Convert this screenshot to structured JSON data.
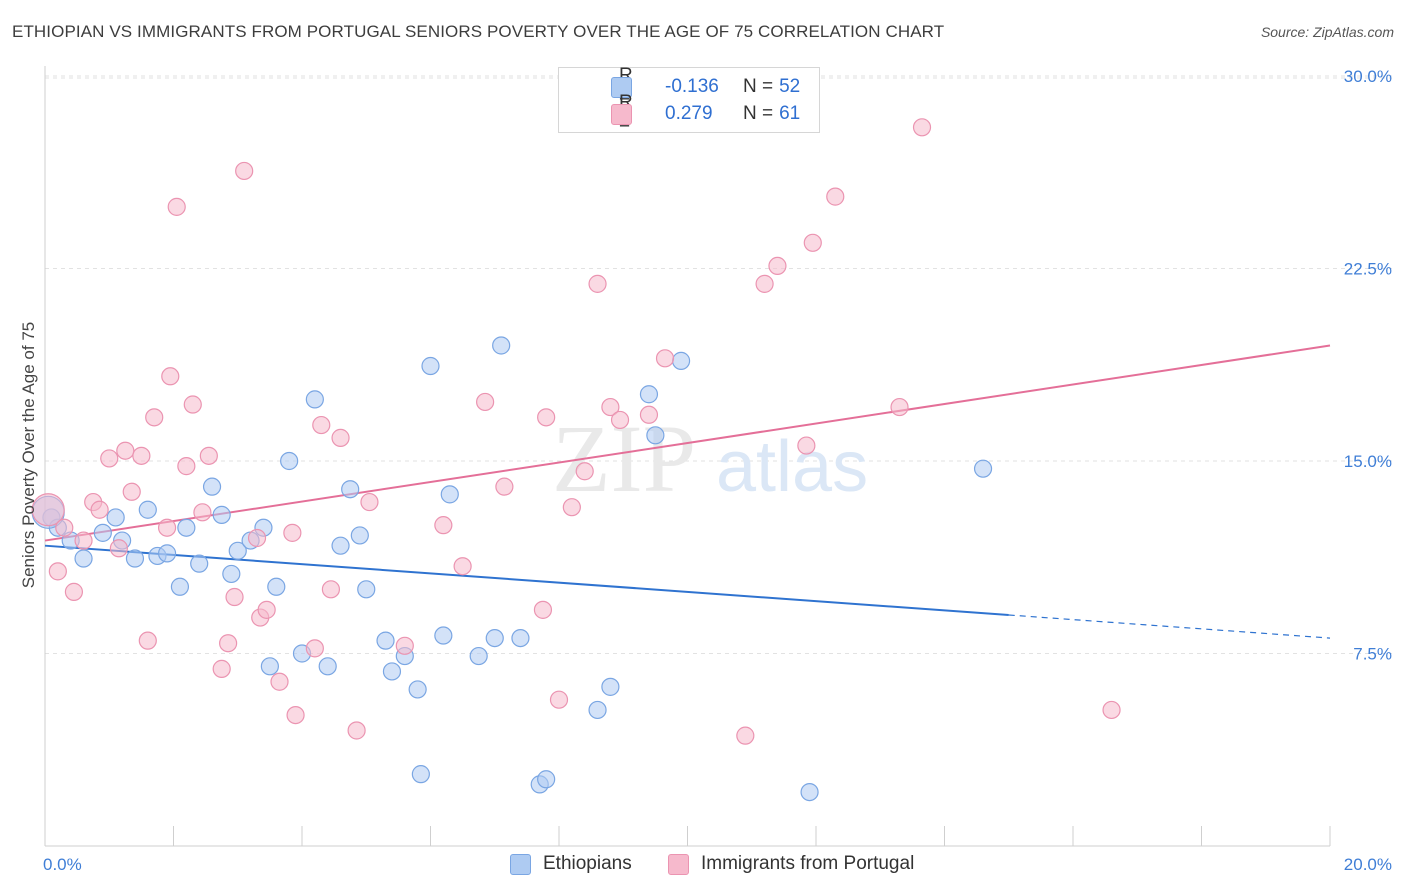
{
  "header": {
    "title": "ETHIOPIAN VS IMMIGRANTS FROM PORTUGAL SENIORS POVERTY OVER THE AGE OF 75 CORRELATION CHART",
    "source": "Source: ZipAtlas.com"
  },
  "watermark": {
    "zip": "ZIP",
    "atlas": "atlas"
  },
  "legend": {
    "rows": [
      {
        "r_label": "R =",
        "r_value": "-0.136",
        "n_label": "N =",
        "n_value": "52",
        "color": "#aecbf2"
      },
      {
        "r_label": "R =",
        "r_value": "0.279",
        "n_label": "N =",
        "n_value": "61",
        "color": "#f6b9cc"
      }
    ]
  },
  "bottom_legend": [
    {
      "label": "Ethiopians",
      "color": "#aecbf2"
    },
    {
      "label": "Immigrants from Portugal",
      "color": "#f6b9cc"
    }
  ],
  "chart_data": {
    "type": "scatter",
    "title": "ETHIOPIAN VS IMMIGRANTS FROM PORTUGAL SENIORS POVERTY OVER THE AGE OF 75 CORRELATION CHART",
    "xlabel": "",
    "ylabel": "Seniors Poverty Over the Age of 75",
    "xlim": [
      0,
      20
    ],
    "ylim": [
      0,
      30.7
    ],
    "x_tick_labels": [
      "0.0%",
      "20.0%"
    ],
    "y_ticks": [
      7.5,
      15.0,
      22.5,
      30.0
    ],
    "y_tick_labels": [
      "7.5%",
      "15.0%",
      "22.5%",
      "30.0%"
    ],
    "grid": true,
    "legend_position": "top-center",
    "colors": {
      "ethiopians": "#2f73d0",
      "portugal": "#e46f98",
      "axis_text": "#3f7ed6"
    },
    "series": [
      {
        "name": "Ethiopians",
        "color": "#aecbf2",
        "stroke": "#7aa6e3",
        "points": [
          [
            0.1,
            12.8
          ],
          [
            0.2,
            12.4
          ],
          [
            0.4,
            11.9
          ],
          [
            0.6,
            11.2
          ],
          [
            0.9,
            12.2
          ],
          [
            1.1,
            12.8
          ],
          [
            1.2,
            11.9
          ],
          [
            1.4,
            11.2
          ],
          [
            1.6,
            13.1
          ],
          [
            1.75,
            11.3
          ],
          [
            1.9,
            11.4
          ],
          [
            2.1,
            10.1
          ],
          [
            2.2,
            12.4
          ],
          [
            2.4,
            11.0
          ],
          [
            2.6,
            14.0
          ],
          [
            2.75,
            12.9
          ],
          [
            2.9,
            10.6
          ],
          [
            3.0,
            11.5
          ],
          [
            3.2,
            11.9
          ],
          [
            3.4,
            12.4
          ],
          [
            3.6,
            10.1
          ],
          [
            3.5,
            7.0
          ],
          [
            3.8,
            15.0
          ],
          [
            4.0,
            7.5
          ],
          [
            4.2,
            17.4
          ],
          [
            4.4,
            7.0
          ],
          [
            4.6,
            11.7
          ],
          [
            4.9,
            12.1
          ],
          [
            4.75,
            13.9
          ],
          [
            5.0,
            10.0
          ],
          [
            5.3,
            8.0
          ],
          [
            5.4,
            6.8
          ],
          [
            5.6,
            7.4
          ],
          [
            5.8,
            6.1
          ],
          [
            5.85,
            2.8
          ],
          [
            6.0,
            18.7
          ],
          [
            6.2,
            8.2
          ],
          [
            6.3,
            13.7
          ],
          [
            6.75,
            7.4
          ],
          [
            7.0,
            8.1
          ],
          [
            7.1,
            19.5
          ],
          [
            7.4,
            8.1
          ],
          [
            7.7,
            2.4
          ],
          [
            7.8,
            2.6
          ],
          [
            8.6,
            5.3
          ],
          [
            8.8,
            6.2
          ],
          [
            9.4,
            17.6
          ],
          [
            9.5,
            16.0
          ],
          [
            9.9,
            18.9
          ],
          [
            11.9,
            2.1
          ],
          [
            14.6,
            14.7
          ],
          [
            0.05,
            13.0
          ]
        ],
        "trend": {
          "x": [
            0,
            15
          ],
          "y": [
            11.7,
            9.0
          ],
          "dashed_to": [
            20,
            8.1
          ]
        }
      },
      {
        "name": "Immigrants from Portugal",
        "color": "#f6b9cc",
        "stroke": "#eb94b1",
        "points": [
          [
            0.05,
            13.1
          ],
          [
            0.2,
            10.7
          ],
          [
            0.3,
            12.4
          ],
          [
            0.45,
            9.9
          ],
          [
            0.6,
            11.9
          ],
          [
            0.75,
            13.4
          ],
          [
            0.85,
            13.1
          ],
          [
            1.0,
            15.1
          ],
          [
            1.15,
            11.6
          ],
          [
            1.25,
            15.4
          ],
          [
            1.35,
            13.8
          ],
          [
            1.5,
            15.2
          ],
          [
            1.6,
            8.0
          ],
          [
            1.7,
            16.7
          ],
          [
            1.9,
            12.4
          ],
          [
            1.95,
            18.3
          ],
          [
            2.05,
            24.9
          ],
          [
            2.2,
            14.8
          ],
          [
            2.3,
            17.2
          ],
          [
            2.45,
            13.0
          ],
          [
            2.55,
            15.2
          ],
          [
            2.75,
            6.9
          ],
          [
            2.85,
            7.9
          ],
          [
            2.95,
            9.7
          ],
          [
            3.1,
            26.3
          ],
          [
            3.3,
            12.0
          ],
          [
            3.35,
            8.9
          ],
          [
            3.45,
            9.2
          ],
          [
            3.65,
            6.4
          ],
          [
            3.85,
            12.2
          ],
          [
            3.9,
            5.1
          ],
          [
            4.2,
            7.7
          ],
          [
            4.3,
            16.4
          ],
          [
            4.45,
            10.0
          ],
          [
            4.6,
            15.9
          ],
          [
            4.85,
            4.5
          ],
          [
            5.05,
            13.4
          ],
          [
            5.6,
            7.8
          ],
          [
            6.2,
            12.5
          ],
          [
            6.5,
            10.9
          ],
          [
            6.85,
            17.3
          ],
          [
            7.15,
            14.0
          ],
          [
            7.75,
            9.2
          ],
          [
            7.8,
            16.7
          ],
          [
            8.0,
            5.7
          ],
          [
            8.2,
            13.2
          ],
          [
            8.4,
            14.6
          ],
          [
            8.6,
            21.9
          ],
          [
            8.8,
            17.1
          ],
          [
            8.95,
            16.6
          ],
          [
            9.4,
            16.8
          ],
          [
            9.65,
            19.0
          ],
          [
            10.9,
            4.3
          ],
          [
            11.2,
            21.9
          ],
          [
            11.4,
            22.6
          ],
          [
            11.85,
            15.6
          ],
          [
            11.95,
            23.5
          ],
          [
            12.3,
            25.3
          ],
          [
            13.3,
            17.1
          ],
          [
            13.65,
            28.0
          ],
          [
            16.6,
            5.3
          ]
        ],
        "trend": {
          "x": [
            0,
            20
          ],
          "y": [
            11.9,
            19.5
          ]
        }
      }
    ]
  }
}
